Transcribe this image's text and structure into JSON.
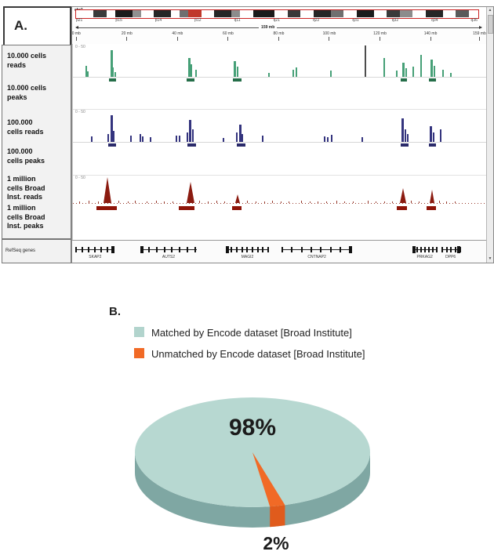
{
  "figure": {
    "panel_a_label": "A.",
    "panel_b_label": "B."
  },
  "browser": {
    "chromosome": "chr7",
    "span_label": "159 mb",
    "ruler_ticks": [
      {
        "label": "0 mb",
        "pos": 1
      },
      {
        "label": "20 mb",
        "pos": 13.2
      },
      {
        "label": "40 mb",
        "pos": 25.4
      },
      {
        "label": "60 mb",
        "pos": 37.6
      },
      {
        "label": "80 mb",
        "pos": 49.8
      },
      {
        "label": "100 mb",
        "pos": 62
      },
      {
        "label": "120 mb",
        "pos": 74.2
      },
      {
        "label": "140 mb",
        "pos": 86.4
      },
      {
        "label": "159 mb",
        "pos": 98.2
      }
    ],
    "ideogram": {
      "bands": [
        [
          4,
          "#ffffff"
        ],
        [
          3,
          "#3a3a3a"
        ],
        [
          2,
          "#ffffff"
        ],
        [
          4,
          "#1b1b1b"
        ],
        [
          2,
          "#909090"
        ],
        [
          3,
          "#ffffff"
        ],
        [
          4,
          "#262626"
        ],
        [
          2,
          "#ffffff"
        ],
        [
          2,
          "#6f6f6f"
        ],
        [
          3,
          "#c0392b"
        ],
        [
          3,
          "#ffffff"
        ],
        [
          4,
          "#262626"
        ],
        [
          2,
          "#8c8c8c"
        ],
        [
          3,
          "#ffffff"
        ],
        [
          5,
          "#1b1b1b"
        ],
        [
          3,
          "#ffffff"
        ],
        [
          3,
          "#3a3a3a"
        ],
        [
          3,
          "#ffffff"
        ],
        [
          4,
          "#262626"
        ],
        [
          3,
          "#6f6f6f"
        ],
        [
          3,
          "#ffffff"
        ],
        [
          4,
          "#1b1b1b"
        ],
        [
          3,
          "#ffffff"
        ],
        [
          3,
          "#3a3a3a"
        ],
        [
          3,
          "#8c8c8c"
        ],
        [
          3,
          "#ffffff"
        ],
        [
          4,
          "#262626"
        ],
        [
          3,
          "#ffffff"
        ],
        [
          3,
          "#5a5a5a"
        ],
        [
          2,
          "#ffffff"
        ]
      ],
      "names": [
        "p21",
        "p15",
        "p14",
        "p12",
        "q11",
        "q21",
        "q22",
        "q31",
        "q32",
        "q34",
        "q36"
      ]
    },
    "track_labels": [
      "10.000 cells\nreads",
      "10.000 cells\npeaks",
      "100.000\ncells reads",
      "100.000\ncells peaks",
      "1 million\ncells Broad\nInst. reads",
      "1 million\ncells Broad\nInst. peaks"
    ],
    "refseq_label": "RefSeq genes",
    "range_label": "0 - 50",
    "colors": {
      "green": "#46a077",
      "green_box": "#256e49",
      "blue": "#34347e",
      "blue_box": "#2a2a6a",
      "red": "#8b1b10",
      "red_box": "#8e1408"
    },
    "tracks": {
      "green": {
        "spikes": [
          [
            3.0,
            14
          ],
          [
            3.4,
            7
          ],
          [
            9.0,
            34,
            3
          ],
          [
            9.5,
            12
          ],
          [
            10.1,
            6
          ],
          [
            27.8,
            24,
            3
          ],
          [
            28.4,
            16
          ],
          [
            29.5,
            9
          ],
          [
            38.8,
            20,
            3
          ],
          [
            39.6,
            13
          ],
          [
            47,
            5
          ],
          [
            53.0,
            9
          ],
          [
            53.7,
            12
          ],
          [
            62.0,
            8
          ],
          [
            70.3,
            40,
            2,
            "#4d4d4d"
          ],
          [
            74.9,
            24
          ],
          [
            77.8,
            8
          ],
          [
            79.4,
            18,
            3
          ],
          [
            80.1,
            11
          ],
          [
            81.9,
            13
          ],
          [
            83.8,
            28
          ],
          [
            86.2,
            22,
            3
          ],
          [
            86.9,
            14
          ],
          [
            89.1,
            9
          ],
          [
            91,
            5
          ]
        ],
        "boxes": [
          [
            8.7,
            9
          ],
          [
            27.5,
            10
          ],
          [
            38.5,
            11
          ],
          [
            79.1,
            8
          ],
          [
            85.9,
            9
          ]
        ]
      },
      "blue": {
        "spikes": [
          [
            4.3,
            7
          ],
          [
            8.4,
            10
          ],
          [
            9.0,
            34,
            3
          ],
          [
            9.6,
            14
          ],
          [
            13.8,
            8
          ],
          [
            16.0,
            10
          ],
          [
            16.6,
            7
          ],
          [
            18.5,
            6
          ],
          [
            24.8,
            8
          ],
          [
            25.5,
            8
          ],
          [
            27.4,
            12
          ],
          [
            28.0,
            28,
            3
          ],
          [
            28.7,
            16
          ],
          [
            36.1,
            5
          ],
          [
            39.3,
            12
          ],
          [
            40.0,
            22,
            3
          ],
          [
            40.7,
            10
          ],
          [
            45.5,
            8
          ],
          [
            60.5,
            7
          ],
          [
            61.3,
            6
          ],
          [
            62.1,
            9
          ],
          [
            69.6,
            6
          ],
          [
            79.3,
            30,
            3
          ],
          [
            80.0,
            16
          ],
          [
            80.6,
            10
          ],
          [
            86.0,
            20,
            3
          ],
          [
            86.8,
            12
          ],
          [
            88.5,
            16
          ]
        ],
        "boxes": [
          [
            8.6,
            10
          ],
          [
            27.6,
            11
          ],
          [
            39.5,
            11
          ],
          [
            79.0,
            10
          ],
          [
            85.8,
            9
          ]
        ]
      },
      "red": {
        "peaks": [
          [
            8.5,
            33,
            11
          ],
          [
            28.3,
            27,
            10
          ],
          [
            39.7,
            11,
            6
          ],
          [
            79.6,
            19,
            8
          ],
          [
            86.6,
            17,
            7
          ]
        ],
        "boxes": [
          [
            5.7,
            26
          ],
          [
            25.5,
            20
          ],
          [
            38.4,
            12
          ],
          [
            78.1,
            13
          ],
          [
            85.3,
            12
          ]
        ],
        "noise": [
          [
            1.5,
            2
          ],
          [
            3.8,
            3
          ],
          [
            6,
            2
          ],
          [
            11,
            3
          ],
          [
            13.2,
            2
          ],
          [
            15,
            3
          ],
          [
            17.8,
            2
          ],
          [
            20,
            3
          ],
          [
            22,
            2
          ],
          [
            24,
            2
          ],
          [
            30.5,
            3
          ],
          [
            32.5,
            2
          ],
          [
            34.5,
            3
          ],
          [
            36.5,
            2
          ],
          [
            42,
            3
          ],
          [
            44,
            2
          ],
          [
            46.2,
            2
          ],
          [
            48,
            3
          ],
          [
            50,
            2
          ],
          [
            52,
            2
          ],
          [
            55,
            3
          ],
          [
            57,
            2
          ],
          [
            59,
            2
          ],
          [
            61,
            2
          ],
          [
            63.5,
            3
          ],
          [
            65.5,
            2
          ],
          [
            67.5,
            2
          ],
          [
            71,
            3
          ],
          [
            73,
            2
          ],
          [
            75,
            2
          ],
          [
            77,
            2
          ],
          [
            81.5,
            3
          ],
          [
            83.3,
            2
          ],
          [
            88.3,
            3
          ],
          [
            90,
            2
          ],
          [
            92,
            2
          ]
        ]
      }
    },
    "genes": [
      {
        "x": 0.8,
        "w": 9.5,
        "exons": 7,
        "label": "SKAP2",
        "dir": "R"
      },
      {
        "x": 16.5,
        "w": 13.5,
        "exons": 8,
        "label": "AUTS2",
        "dir": "L"
      },
      {
        "x": 37.0,
        "w": 10.5,
        "exons": 9,
        "label": "MAGI2",
        "dir": "L"
      },
      {
        "x": 50.5,
        "w": 17.0,
        "exons": 8,
        "label": "CNTNAP2",
        "dir": "R"
      },
      {
        "x": 82.0,
        "w": 6.0,
        "exons": 7,
        "label": "PRKAG2",
        "dir": "L"
      },
      {
        "x": 89.0,
        "w": 4.5,
        "exons": 5,
        "label": "DPP6",
        "dir": "R"
      }
    ]
  },
  "legend": [
    {
      "label": "Matched by Encode dataset [Broad Institute]",
      "color": "#b2d4cd"
    },
    {
      "label": "Unmatched by Encode dataset [Broad Institute]",
      "color": "#f16a26"
    }
  ],
  "pie": {
    "big_label": "98%",
    "small_label": "2%",
    "top_color": "#b7d8d1",
    "side_color": "#7fa7a3",
    "slice_color": "#f16a26",
    "slice_side_color": "#e05b1c"
  },
  "chart_data": {
    "type": "pie",
    "labels": [
      "Matched by Encode dataset [Broad Institute]",
      "Unmatched by Encode dataset [Broad Institute]"
    ],
    "values": [
      98,
      2
    ],
    "value_labels": [
      "98%",
      "2%"
    ],
    "colors": [
      "#b7d8d1",
      "#f16a26"
    ],
    "style": "3d",
    "legend_position": "top"
  }
}
